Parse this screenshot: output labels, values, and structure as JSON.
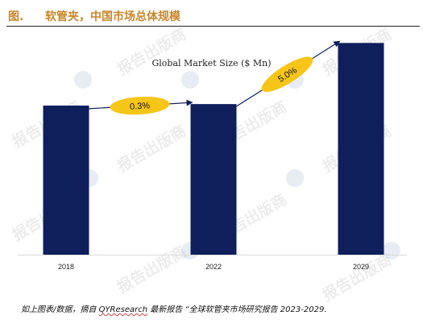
{
  "header": {
    "figure_label": "图.",
    "title": "软管夹，中国市场总体规模"
  },
  "watermark": {
    "text": "报告出版商",
    "icon": "qyresearch-logo-icon"
  },
  "colors": {
    "header_text": "#c8862a",
    "bar": "#0f1f5c",
    "callout": "#f5c518"
  },
  "chart_data": {
    "type": "bar",
    "title": "Global Market Size ($ Mn)",
    "categories": [
      "2018",
      "2022",
      "2029"
    ],
    "values": [
      1.0,
      1.01,
      1.42
    ],
    "ylim": [
      0,
      1.6
    ],
    "grid": false,
    "legend": "none",
    "annotations": [
      {
        "label": "0.3%",
        "from": "2018",
        "to": "2022"
      },
      {
        "label": "5.0%",
        "from": "2022",
        "to": "2029"
      }
    ]
  },
  "footnote": {
    "prefix": "如上图表/数据，摘自 ",
    "brand": "QYResearch",
    "suffix": " 最新报告 “全球软管夹市场研究报告 2023-2029."
  }
}
